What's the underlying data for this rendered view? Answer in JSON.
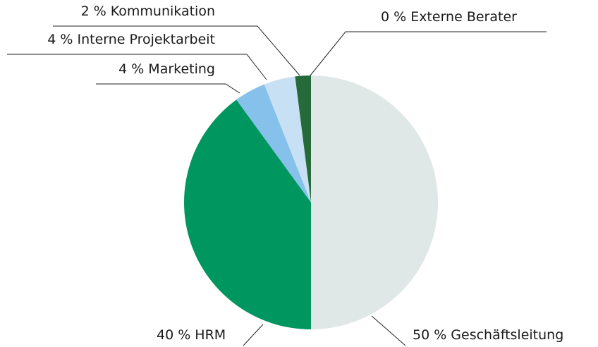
{
  "chart_data": {
    "type": "pie",
    "categories": [
      "Geschäftsleitung",
      "HRM",
      "Marketing",
      "Interne Projektarbeit",
      "Kommunikation",
      "Externe Berater"
    ],
    "values": [
      50,
      40,
      4,
      4,
      2,
      0
    ],
    "value_labels": [
      "50 %",
      "40 %",
      "4 %",
      "4 %",
      "2 %",
      "0 %"
    ],
    "colors": [
      "#dfe8e6",
      "#00965f",
      "#85c1ea",
      "#c8e0f4",
      "#276a39",
      "#1d4f2b"
    ]
  }
}
